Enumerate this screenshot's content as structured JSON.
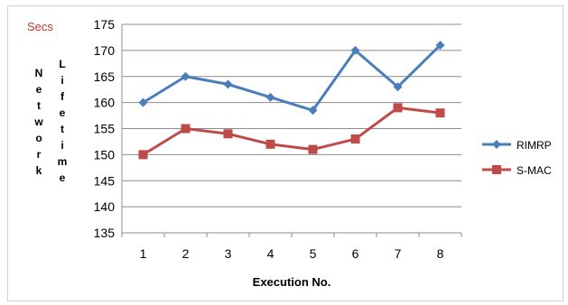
{
  "chart_data": {
    "type": "line",
    "unit_label": "Secs",
    "ylabel_word1": "Network",
    "ylabel_word2": "Lifetime",
    "xlabel": "Execution No.",
    "categories": [
      "1",
      "2",
      "3",
      "4",
      "5",
      "6",
      "7",
      "8"
    ],
    "ylim": [
      135,
      175
    ],
    "yticks": [
      135,
      140,
      145,
      150,
      155,
      160,
      165,
      170,
      175
    ],
    "grid": true,
    "legend_position": "right",
    "series": [
      {
        "name": "RIMRP",
        "color": "#4a7ebb",
        "marker": "diamond",
        "values": [
          160,
          165,
          163.5,
          161,
          158.5,
          170,
          163,
          171
        ]
      },
      {
        "name": "S-MAC",
        "color": "#be4b48",
        "marker": "square",
        "values": [
          150,
          155,
          154,
          152,
          151,
          153,
          159,
          158
        ]
      }
    ]
  }
}
